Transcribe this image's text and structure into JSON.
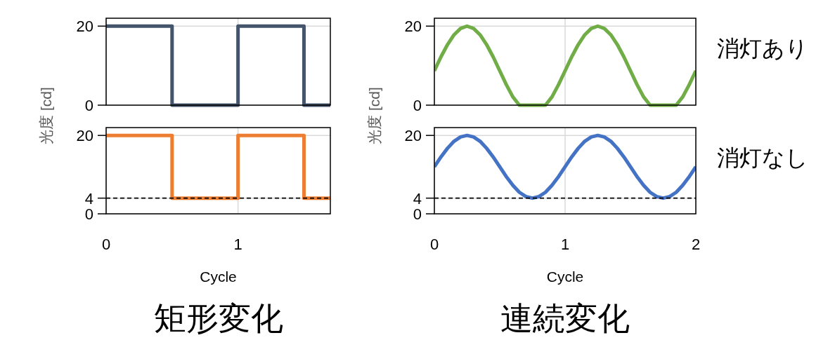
{
  "chart_data": [
    {
      "type": "step",
      "ylabel": "光度 [cd]",
      "x": [
        0,
        0.5,
        1,
        1.5,
        1.7
      ],
      "series": [
        {
          "color": "#44546a",
          "values": [
            20,
            0,
            20,
            0,
            0
          ]
        }
      ],
      "xlim": [
        0,
        1.7
      ],
      "ylim": [
        0,
        22
      ],
      "xticks": [
        0,
        1
      ],
      "yticks": [
        0,
        20
      ],
      "tick_labels": "y",
      "grid": true
    },
    {
      "type": "line",
      "ylabel": "光度 [cd]",
      "annotations": [
        "消灯あり"
      ],
      "x": [
        0,
        0.05,
        0.1,
        0.15,
        0.2,
        0.25,
        0.3,
        0.35,
        0.4,
        0.45,
        0.5,
        0.55,
        0.6,
        0.65,
        0.7,
        0.75,
        0.8,
        0.85,
        0.9,
        0.95,
        1,
        1.05,
        1.1,
        1.15,
        1.2,
        1.25,
        1.3,
        1.35,
        1.4,
        1.45,
        1.5,
        1.55,
        1.6,
        1.65,
        1.7,
        1.75,
        1.8,
        1.85,
        1.9,
        1.95,
        2
      ],
      "series": [
        {
          "color": "#70ad47",
          "values": [
            8.7,
            12.2,
            15.3,
            17.8,
            19.4,
            20,
            19.4,
            17.8,
            15.3,
            12.2,
            8.7,
            5.2,
            2.1,
            0,
            0,
            0,
            0,
            0,
            2.1,
            5.2,
            8.7,
            12.2,
            15.3,
            17.8,
            19.4,
            20,
            19.4,
            17.8,
            15.3,
            12.2,
            8.7,
            5.2,
            2.1,
            0,
            0,
            0,
            0,
            0,
            2.1,
            5.2,
            8.7
          ]
        }
      ],
      "xlim": [
        0,
        2
      ],
      "ylim": [
        0,
        22
      ],
      "xticks": [
        0,
        1,
        2
      ],
      "yticks": [
        0,
        20
      ],
      "tick_labels": "y",
      "grid": true
    },
    {
      "type": "step",
      "xlabel": "Cycle",
      "annotations": [
        "矩形変化"
      ],
      "x": [
        0,
        0.5,
        1,
        1.5,
        1.7
      ],
      "series": [
        {
          "color": "#ed7d31",
          "values": [
            20,
            4,
            20,
            4,
            4
          ]
        }
      ],
      "xlim": [
        0,
        1.7
      ],
      "ylim": [
        0,
        22
      ],
      "xticks": [
        0,
        1
      ],
      "yticks": [
        0,
        4,
        20
      ],
      "grid": true,
      "ref_lines": [
        {
          "axis": "y",
          "value": 4,
          "color": "#000000",
          "line_style": "dashed"
        }
      ]
    },
    {
      "type": "line",
      "xlabel": "Cycle",
      "annotations": [
        "消灯なし",
        "連続変化"
      ],
      "x": [
        0,
        0.05,
        0.1,
        0.15,
        0.2,
        0.25,
        0.3,
        0.35,
        0.4,
        0.45,
        0.5,
        0.55,
        0.6,
        0.65,
        0.7,
        0.75,
        0.8,
        0.85,
        0.9,
        0.95,
        1,
        1.05,
        1.1,
        1.15,
        1.2,
        1.25,
        1.3,
        1.35,
        1.4,
        1.45,
        1.5,
        1.55,
        1.6,
        1.65,
        1.7,
        1.75,
        1.8,
        1.85,
        1.9,
        1.95,
        2
      ],
      "series": [
        {
          "color": "#4472c4",
          "values": [
            12,
            14.5,
            16.7,
            18.5,
            19.6,
            20,
            19.6,
            18.5,
            16.7,
            14.5,
            12,
            9.5,
            7.3,
            5.5,
            4.4,
            4,
            4.4,
            5.5,
            7.3,
            9.5,
            12,
            14.5,
            16.7,
            18.5,
            19.6,
            20,
            19.6,
            18.5,
            16.7,
            14.5,
            12,
            9.5,
            7.3,
            5.5,
            4.4,
            4,
            4.4,
            5.5,
            7.3,
            9.5,
            12
          ]
        }
      ],
      "xlim": [
        0,
        2
      ],
      "ylim": [
        0,
        22
      ],
      "xticks": [
        0,
        1,
        2
      ],
      "yticks": [
        0,
        4,
        20
      ],
      "grid": true,
      "ref_lines": [
        {
          "axis": "y",
          "value": 4,
          "color": "#000000",
          "line_style": "dashed"
        }
      ]
    }
  ]
}
